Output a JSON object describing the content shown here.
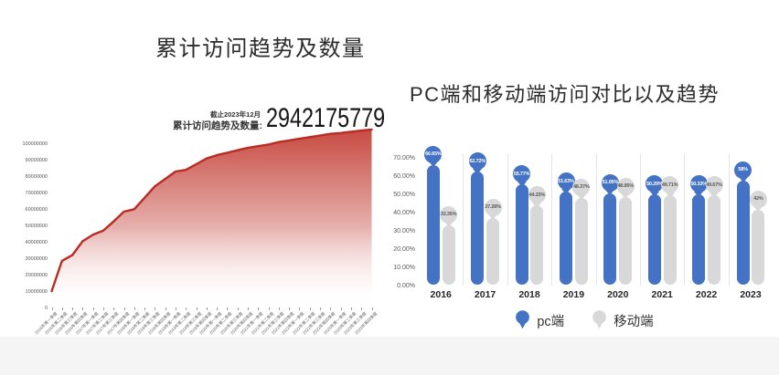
{
  "page": {
    "background": "#ffffff",
    "footer_band_color": "#f5f5f6"
  },
  "chart_data": [
    {
      "type": "area",
      "title": "累计访问趋势及数量",
      "annotation": {
        "date": "截止2023年12月",
        "label": "累计访问趋势及数量:",
        "value": "2942175779"
      },
      "x": [
        "2016年第一季度",
        "2016年第二季度",
        "2016年第三季度",
        "2016年第四季度",
        "2017年第一季度",
        "2017年第二季度",
        "2017年第三季度",
        "2017年第四季度",
        "2018年第一季度",
        "2018年第二季度",
        "2018年第三季度",
        "2018年第四季度",
        "2019年第一季度",
        "2019年第二季度",
        "2019年第三季度",
        "2019年第四季度",
        "2020年第一季度",
        "2020年第二季度",
        "2020年第三季度",
        "2020年第四季度",
        "2021年第一季度",
        "2021年第二季度",
        "2021年第三季度",
        "2021年第四季度",
        "2022年第一季度",
        "2022年第二季度",
        "2022年第三季度",
        "2022年第四季度",
        "2023年第一季度",
        "2023年第二季度",
        "2023年第三季度",
        "2023年第四季度"
      ],
      "values": [
        10500000,
        29000000,
        32500000,
        41000000,
        45000000,
        47500000,
        53000000,
        59000000,
        60500000,
        67500000,
        74500000,
        79000000,
        83500000,
        84500000,
        88000000,
        91500000,
        93500000,
        95000000,
        96500000,
        98000000,
        99000000,
        100000000,
        101500000,
        102500000,
        103500000,
        104500000,
        105500000,
        106500000,
        107000000,
        107800000,
        108500000,
        109200000
      ],
      "y_ticks": [
        0,
        10000000,
        20000000,
        30000000,
        40000000,
        50000000,
        60000000,
        70000000,
        80000000,
        90000000,
        100000000
      ],
      "ylim": [
        0,
        112000000
      ],
      "grid": false,
      "legend_position": "none",
      "colors": {
        "line": "#b92b23",
        "fill_top": "#c5443b",
        "fill_bottom": "#ffffff"
      }
    },
    {
      "type": "bar",
      "subtype": "lollipop",
      "title": "PC端和移动端访问对比以及趋势",
      "categories": [
        "2016",
        "2017",
        "2018",
        "2019",
        "2020",
        "2021",
        "2022",
        "2023"
      ],
      "series": [
        {
          "name": "pc端",
          "color": "#4472c4",
          "label_color": "#ffffff",
          "values": [
            66.65,
            62.72,
            55.77,
            51.63,
            51.05,
            50.29,
            50.33,
            58
          ],
          "labels": [
            "66.65%",
            "62.72%",
            "55.77%",
            "51.63%",
            "51.05%",
            "50.29%",
            "50.33%",
            "58%"
          ]
        },
        {
          "name": "移动端",
          "color": "#d8d8d8",
          "label_color": "#595959",
          "values": [
            33.35,
            37.28,
            44.23,
            48.37,
            48.95,
            49.71,
            49.67,
            42
          ],
          "labels": [
            "33.35%",
            "37.28%",
            "44.23%",
            "48.37%",
            "48.95%",
            "49.71%",
            "49.67%",
            "42%"
          ]
        }
      ],
      "y_ticks": [
        "0.00%",
        "10.00%",
        "20.00%",
        "30.00%",
        "40.00%",
        "50.00%",
        "60.00%",
        "70.00%"
      ],
      "ylim": [
        0,
        70
      ],
      "grid": false,
      "legend": [
        "pc端",
        "移动端"
      ],
      "legend_position": "bottom"
    }
  ]
}
